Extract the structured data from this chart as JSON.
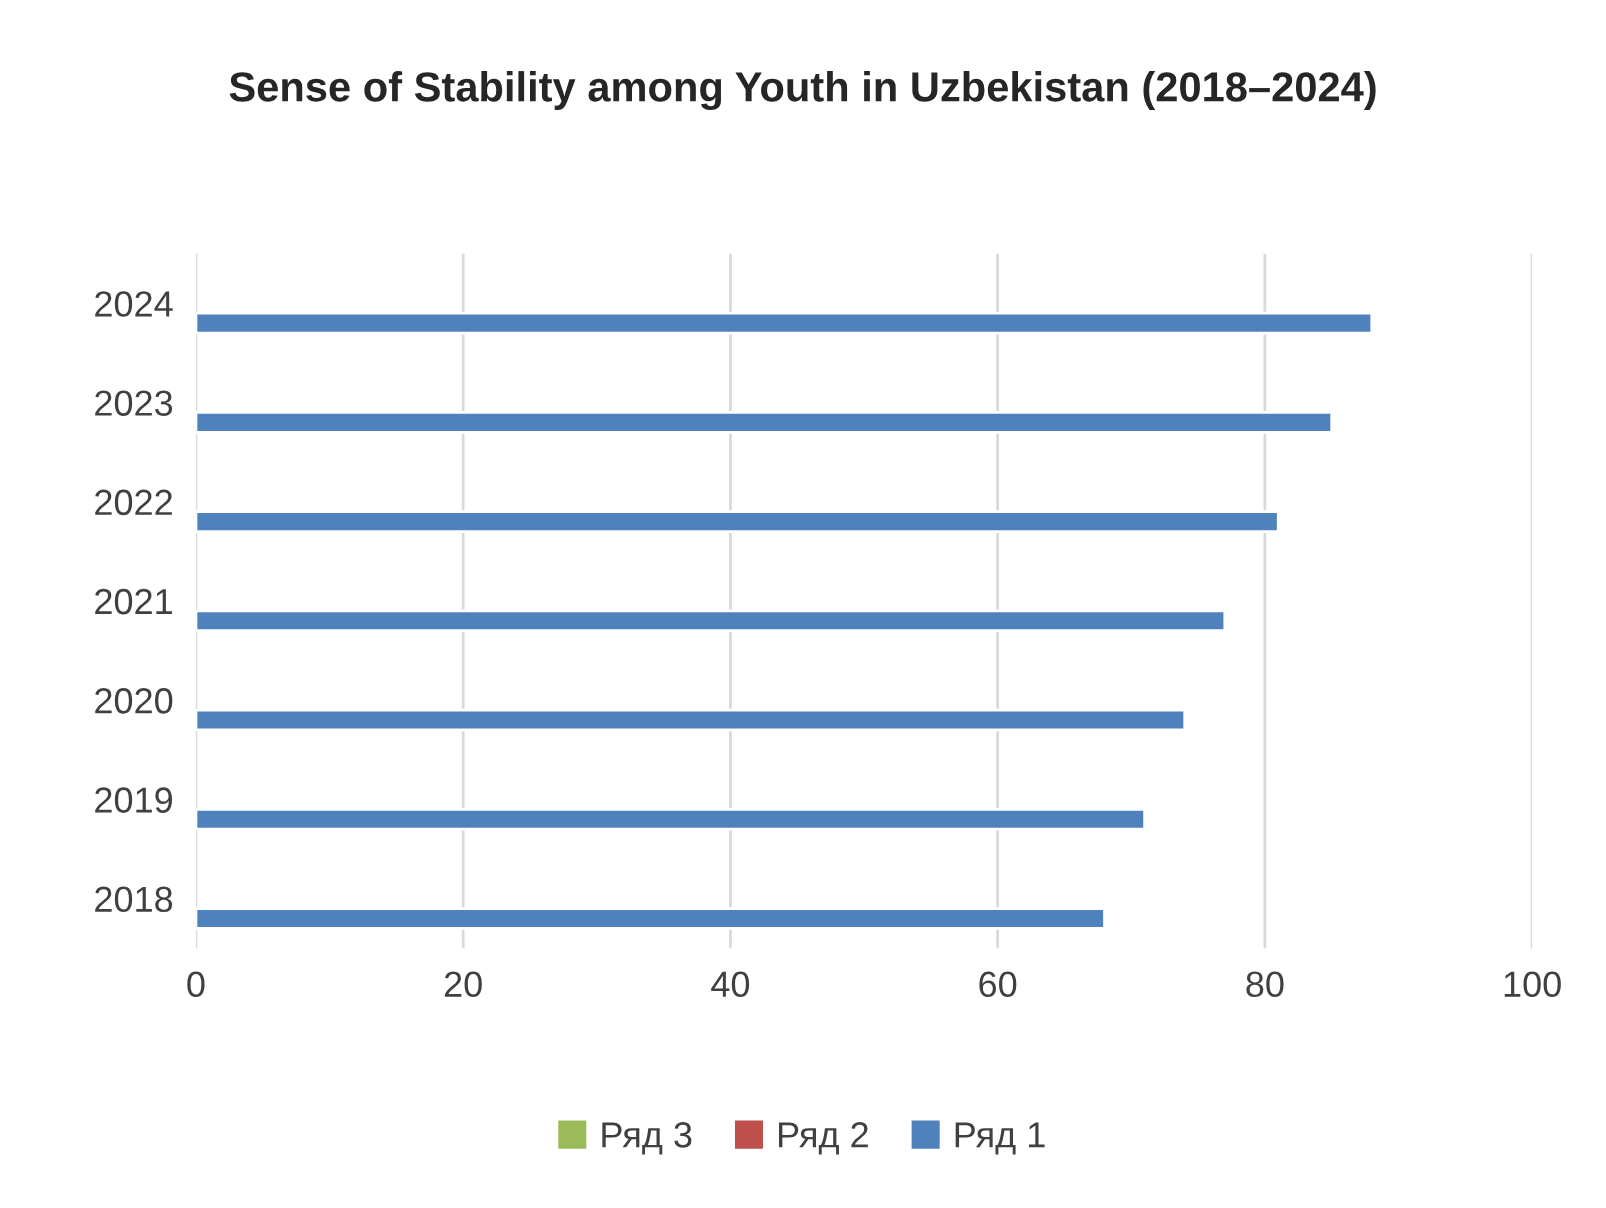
{
  "chart_data": {
    "type": "bar",
    "orientation": "horizontal",
    "title": "Sense of Stability among Youth in Uzbekistan (2018–2024)",
    "categories": [
      "2024",
      "2023",
      "2022",
      "2021",
      "2020",
      "2019",
      "2018"
    ],
    "series": [
      {
        "name": "Ряд 1",
        "color": "#4f81bd",
        "values": [
          88,
          85,
          81,
          77,
          74,
          71,
          68
        ]
      },
      {
        "name": "Ряд 2",
        "color": "#c0504d",
        "values": [
          null,
          null,
          null,
          null,
          null,
          null,
          null
        ]
      },
      {
        "name": "Ряд 3",
        "color": "#9bbb59",
        "values": [
          null,
          null,
          null,
          null,
          null,
          null,
          null
        ]
      }
    ],
    "xlim": [
      0,
      100
    ],
    "xticks": [
      0,
      20,
      40,
      60,
      80,
      100
    ],
    "grid": "x",
    "legend": "bottom"
  }
}
